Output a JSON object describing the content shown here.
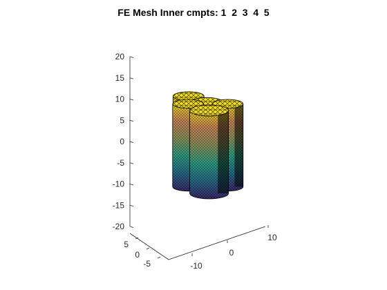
{
  "chart_data": {
    "type": "3d-mesh",
    "title": "FE Mesh Inner cmpts: 1  2  3  4  5",
    "xlabel": "",
    "ylabel": "",
    "zlabel": "",
    "zlim": [
      -20,
      20
    ],
    "z_ticks": [
      "20",
      "15",
      "10",
      "5",
      "0",
      "-5",
      "-10",
      "-15",
      "-20"
    ],
    "y_ticks": [
      "5",
      "0",
      "-5"
    ],
    "x_ticks": [
      "-10",
      "0",
      "10"
    ],
    "grid": false,
    "colormap": [
      "#3b2b6e",
      "#2b6f8e",
      "#2fa58a",
      "#8f9960",
      "#d18a5e",
      "#f5e027"
    ],
    "mesh_color": "#000000",
    "components": [
      {
        "id": 1,
        "cx": -6,
        "cy": 1,
        "r": 4
      },
      {
        "id": 2,
        "cx": 1,
        "cy": 1,
        "r": 4
      },
      {
        "id": 3,
        "cx": 7,
        "cy": -2,
        "r": 4
      },
      {
        "id": 4,
        "cx": -3,
        "cy": 6,
        "r": 4
      },
      {
        "id": 5,
        "cx": 5,
        "cy": 6,
        "r": 5
      }
    ]
  }
}
